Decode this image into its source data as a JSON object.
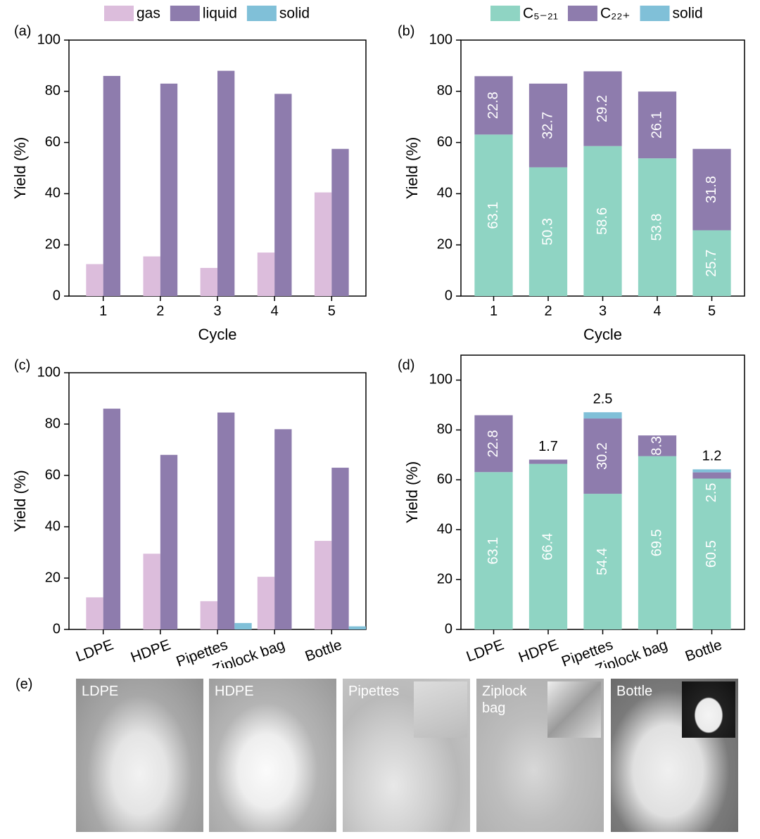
{
  "chart_data": [
    {
      "type": "bar",
      "panel_label": "(a)",
      "x_label": "Cycle",
      "y_label": "Yield (%)",
      "legend": "top",
      "categories": [
        "1",
        "2",
        "3",
        "4",
        "5"
      ],
      "series": [
        {
          "name": "gas",
          "color": "#dcbddc",
          "values": [
            12.5,
            15.5,
            11,
            17,
            40.5
          ]
        },
        {
          "name": "liquid",
          "color": "#8e7cad",
          "values": [
            86,
            83,
            88,
            79,
            57.5
          ]
        },
        {
          "name": "solid",
          "color": "#80c0d8",
          "values": [
            null,
            null,
            null,
            null,
            null
          ]
        }
      ],
      "ylim": [
        0,
        100
      ],
      "yticks": [
        0,
        20,
        40,
        60,
        80,
        100
      ]
    },
    {
      "type": "stacked_bar",
      "panel_label": "(b)",
      "x_label": "Cycle",
      "y_label": "Yield (%)",
      "legend": "top",
      "categories": [
        "1",
        "2",
        "3",
        "4",
        "5"
      ],
      "series": [
        {
          "name": "C₅₋₂₁",
          "color": "#8fd4c3",
          "values": [
            63.1,
            50.3,
            58.6,
            53.8,
            25.7
          ]
        },
        {
          "name": "C₂₂₊",
          "color": "#8e7cad",
          "values": [
            22.8,
            32.7,
            29.2,
            26.1,
            31.8
          ]
        },
        {
          "name": "solid",
          "color": "#80c0d8",
          "values": [
            null,
            null,
            null,
            null,
            null
          ]
        }
      ],
      "ylim": [
        0,
        100
      ],
      "yticks": [
        0,
        20,
        40,
        60,
        80,
        100
      ]
    },
    {
      "type": "bar",
      "panel_label": "(c)",
      "y_label": "Yield (%)",
      "categories": [
        "LDPE",
        "HDPE",
        "Pipettes",
        "Ziplock bag",
        "Bottle"
      ],
      "series": [
        {
          "color": "#dcbddc",
          "values": [
            12.5,
            29.5,
            11,
            20.5,
            34.5
          ]
        },
        {
          "color": "#8e7cad",
          "values": [
            86,
            68,
            84.5,
            78,
            63
          ]
        },
        {
          "color": "#80c0d8",
          "values": [
            null,
            null,
            2.5,
            null,
            1.2
          ]
        }
      ],
      "ylim": [
        0,
        100
      ],
      "yticks": [
        0,
        20,
        40,
        60,
        80,
        100
      ]
    },
    {
      "type": "stacked_bar",
      "panel_label": "(d)",
      "y_label": "Yield (%)",
      "categories": [
        "LDPE",
        "HDPE",
        "Pipettes",
        "Ziplock bag",
        "Bottle"
      ],
      "series": [
        {
          "color": "#8fd4c3",
          "values": [
            63.1,
            66.4,
            54.4,
            69.5,
            60.5
          ]
        },
        {
          "color": "#8e7cad",
          "values": [
            22.8,
            1.7,
            30.2,
            8.3,
            2.5
          ]
        },
        {
          "color": "#80c0d8",
          "values": [
            null,
            null,
            2.5,
            null,
            1.2
          ]
        }
      ],
      "ylim": [
        0,
        110
      ],
      "yticks": [
        0,
        20,
        40,
        60,
        80,
        100
      ]
    }
  ],
  "photos": {
    "panel_label": "(e)",
    "items": [
      "LDPE",
      "HDPE",
      "Pipettes",
      "Ziplock bag",
      "Bottle"
    ]
  }
}
